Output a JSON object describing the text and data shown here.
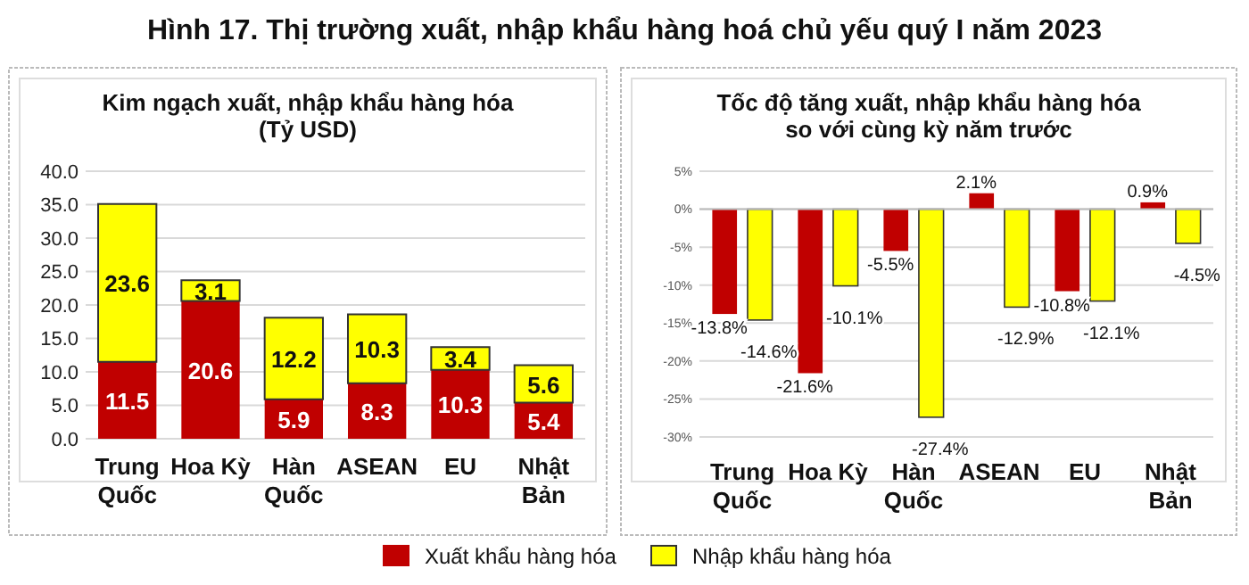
{
  "chart_data": [
    {
      "type": "bar",
      "title": "Kim ngạch xuất, nhập khẩu hàng hóa\n(Tỷ USD)",
      "annotations": [
        "Hình 17. Thị trường xuất, nhập khẩu hàng hoá chủ yếu quý I năm 2023"
      ],
      "categories": [
        "Trung Quốc",
        "Hoa Kỳ",
        "Hàn Quốc",
        "ASEAN",
        "EU",
        "Nhật Bản"
      ],
      "stacked": true,
      "data_labels": true,
      "grid": "y",
      "legend": "bottom",
      "ylim": [
        0,
        40
      ],
      "yticks": [
        {
          "value": 0,
          "label": "0.0"
        },
        {
          "value": 5,
          "label": "5.0"
        },
        {
          "value": 10,
          "label": "10.0"
        },
        {
          "value": 15,
          "label": "15.0"
        },
        {
          "value": 20,
          "label": "20.0"
        },
        {
          "value": 25,
          "label": "25.0"
        },
        {
          "value": 30,
          "label": "30.0"
        },
        {
          "value": 35,
          "label": "35.0"
        },
        {
          "value": 40,
          "label": "40.0"
        }
      ],
      "series": [
        {
          "name": "Xuất khẩu hàng hóa",
          "color": "#c00000",
          "values": [
            11.5,
            20.6,
            5.9,
            8.3,
            10.3,
            5.4
          ]
        },
        {
          "name": "Nhập khẩu hàng hóa",
          "color": "#ffff00",
          "values": [
            23.6,
            3.1,
            12.2,
            10.3,
            3.4,
            5.6
          ]
        }
      ]
    },
    {
      "type": "bar",
      "title": "Tốc độ tăng xuất, nhập khẩu hàng hóa\nso với cùng kỳ năm trước",
      "categories": [
        "Trung Quốc",
        "Hoa Kỳ",
        "Hàn Quốc",
        "ASEAN",
        "EU",
        "Nhật Bản"
      ],
      "grid": "y",
      "ylim": [
        -30,
        5
      ],
      "yticks": [
        {
          "value": 5,
          "label": "5%"
        },
        {
          "value": 0,
          "label": "0%"
        },
        {
          "value": -5,
          "label": "-5%"
        },
        {
          "value": -10,
          "label": "-10%"
        },
        {
          "value": -15,
          "label": "-15%"
        },
        {
          "value": -20,
          "label": "-20%"
        },
        {
          "value": -25,
          "label": "-25%"
        },
        {
          "value": -30,
          "label": "-30%"
        }
      ],
      "series": [
        {
          "color": "#c00000",
          "values": [
            -13.8,
            -21.6,
            -5.5,
            2.1,
            -10.8,
            0.9
          ],
          "value_labels": [
            "-13.8%",
            "-21.6%",
            "-5.5%",
            "2.1%",
            "-10.8%",
            "0.9%"
          ]
        },
        {
          "color": "#ffff00",
          "values": [
            -14.6,
            -10.1,
            -27.4,
            -12.9,
            -12.1,
            -4.5
          ],
          "value_labels": [
            "-14.6%",
            "-10.1%",
            "-27.4%",
            "-12.9%",
            "-12.1%",
            "-4.5%"
          ]
        }
      ]
    }
  ]
}
